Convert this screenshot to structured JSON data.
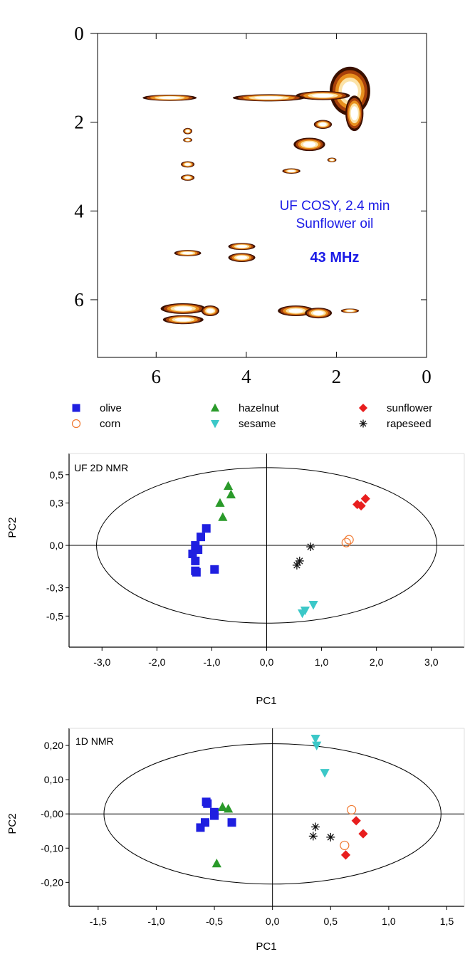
{
  "chart_data": [
    {
      "type": "heatmap",
      "annotations": [
        "UF COSY, 2.4 min",
        "Sunflower oil",
        "43 MHz"
      ],
      "x_ticks": [
        "6",
        "4",
        "2",
        "0"
      ],
      "y_ticks": [
        "0",
        "2",
        "4",
        "6"
      ],
      "xlim": [
        7.3,
        0
      ],
      "ylim": [
        0,
        7.3
      ],
      "annotation_color": "#1a1ae6",
      "peaks": [
        {
          "x": 1.7,
          "y": 1.3,
          "dx": 0.45,
          "dy": 0.55
        },
        {
          "x": 1.6,
          "y": 1.8,
          "dx": 0.2,
          "dy": 0.4
        },
        {
          "x": 2.3,
          "y": 1.4,
          "dx": 0.6,
          "dy": 0.1
        },
        {
          "x": 3.5,
          "y": 1.45,
          "dx": 0.8,
          "dy": 0.08
        },
        {
          "x": 5.7,
          "y": 1.45,
          "dx": 0.6,
          "dy": 0.07
        },
        {
          "x": 2.6,
          "y": 2.5,
          "dx": 0.35,
          "dy": 0.15
        },
        {
          "x": 2.3,
          "y": 2.05,
          "dx": 0.2,
          "dy": 0.1
        },
        {
          "x": 5.3,
          "y": 2.2,
          "dx": 0.1,
          "dy": 0.07
        },
        {
          "x": 5.3,
          "y": 2.4,
          "dx": 0.1,
          "dy": 0.05
        },
        {
          "x": 5.3,
          "y": 2.95,
          "dx": 0.15,
          "dy": 0.07
        },
        {
          "x": 5.3,
          "y": 3.25,
          "dx": 0.15,
          "dy": 0.07
        },
        {
          "x": 3.0,
          "y": 3.1,
          "dx": 0.2,
          "dy": 0.06
        },
        {
          "x": 2.1,
          "y": 2.85,
          "dx": 0.1,
          "dy": 0.05
        },
        {
          "x": 5.3,
          "y": 4.95,
          "dx": 0.3,
          "dy": 0.07
        },
        {
          "x": 4.1,
          "y": 4.8,
          "dx": 0.3,
          "dy": 0.08
        },
        {
          "x": 4.1,
          "y": 5.05,
          "dx": 0.3,
          "dy": 0.1
        },
        {
          "x": 5.4,
          "y": 6.2,
          "dx": 0.5,
          "dy": 0.12
        },
        {
          "x": 5.4,
          "y": 6.45,
          "dx": 0.45,
          "dy": 0.1
        },
        {
          "x": 4.8,
          "y": 6.25,
          "dx": 0.2,
          "dy": 0.12
        },
        {
          "x": 2.9,
          "y": 6.25,
          "dx": 0.4,
          "dy": 0.12
        },
        {
          "x": 2.4,
          "y": 6.3,
          "dx": 0.3,
          "dy": 0.12
        },
        {
          "x": 1.7,
          "y": 6.25,
          "dx": 0.2,
          "dy": 0.05
        }
      ]
    },
    {
      "type": "scatter",
      "title": "UF 2D NMR",
      "xlabel": "PC1",
      "ylabel": "PC2",
      "xlim": [
        -3.6,
        3.6
      ],
      "ylim": [
        -0.72,
        0.65
      ],
      "x_ticks": [
        -3.0,
        -2.0,
        -1.0,
        0.0,
        1.0,
        2.0,
        3.0
      ],
      "x_tick_labels": [
        "-3,0",
        "-2,0",
        "-1,0",
        "0,0",
        "1,0",
        "2,0",
        "3,0"
      ],
      "y_ticks": [
        0.5,
        0.3,
        0.0,
        -0.3,
        -0.5
      ],
      "y_tick_labels": [
        "0,5",
        "0,3",
        "0,0",
        "-0,3",
        "-0,5"
      ],
      "ellipse": {
        "rx": 3.1,
        "ry": 0.55
      },
      "series": [
        {
          "name": "olive",
          "marker": "square",
          "color": "#1f1fe0",
          "points": [
            [
              -1.1,
              0.12
            ],
            [
              -1.2,
              0.06
            ],
            [
              -1.3,
              0.0
            ],
            [
              -1.25,
              -0.03
            ],
            [
              -1.35,
              -0.06
            ],
            [
              -1.3,
              -0.11
            ],
            [
              -1.3,
              -0.18
            ],
            [
              -1.28,
              -0.19
            ],
            [
              -0.95,
              -0.17
            ]
          ]
        },
        {
          "name": "corn",
          "marker": "circle-open",
          "color": "#f07830",
          "points": [
            [
              1.5,
              0.04
            ],
            [
              1.45,
              0.02
            ]
          ]
        },
        {
          "name": "hazelnut",
          "marker": "triangle-up",
          "color": "#2a9a2a",
          "points": [
            [
              -0.7,
              0.42
            ],
            [
              -0.65,
              0.36
            ],
            [
              -0.85,
              0.3
            ],
            [
              -0.8,
              0.2
            ]
          ]
        },
        {
          "name": "sesame",
          "marker": "triangle-down",
          "color": "#3cc8c8",
          "points": [
            [
              0.85,
              -0.42
            ],
            [
              0.7,
              -0.46
            ],
            [
              0.65,
              -0.48
            ]
          ]
        },
        {
          "name": "sunflower",
          "marker": "diamond",
          "color": "#e81e1e",
          "points": [
            [
              1.8,
              0.33
            ],
            [
              1.65,
              0.29
            ],
            [
              1.72,
              0.28
            ]
          ]
        },
        {
          "name": "rapeseed",
          "marker": "asterisk",
          "color": "#111111",
          "points": [
            [
              0.8,
              -0.01
            ],
            [
              0.6,
              -0.11
            ],
            [
              0.55,
              -0.14
            ]
          ]
        }
      ]
    },
    {
      "type": "scatter",
      "title": "1D NMR",
      "xlabel": "PC1",
      "ylabel": "PC2",
      "xlim": [
        -1.75,
        1.65
      ],
      "ylim": [
        -0.27,
        0.25
      ],
      "x_ticks": [
        -1.5,
        -1.0,
        -0.5,
        0.0,
        0.5,
        1.0,
        1.5
      ],
      "x_tick_labels": [
        "-1,5",
        "-1,0",
        "-0,5",
        "0,0",
        "0,5",
        "1,0",
        "1,5"
      ],
      "y_ticks": [
        0.2,
        0.1,
        0.0,
        -0.1,
        -0.2
      ],
      "y_tick_labels": [
        "0,20",
        "0,10",
        "-0,00",
        "-0,10",
        "-0,20"
      ],
      "ellipse": {
        "rx": 1.45,
        "ry": 0.205
      },
      "series": [
        {
          "name": "olive",
          "marker": "square",
          "color": "#1f1fe0",
          "points": [
            [
              -0.57,
              0.035
            ],
            [
              -0.56,
              0.03
            ],
            [
              -0.5,
              0.005
            ],
            [
              -0.5,
              -0.005
            ],
            [
              -0.58,
              -0.025
            ],
            [
              -0.62,
              -0.04
            ],
            [
              -0.35,
              -0.025
            ]
          ]
        },
        {
          "name": "corn",
          "marker": "circle-open",
          "color": "#f07830",
          "points": [
            [
              0.68,
              0.012
            ],
            [
              0.62,
              -0.092
            ]
          ]
        },
        {
          "name": "hazelnut",
          "marker": "triangle-up",
          "color": "#2a9a2a",
          "points": [
            [
              -0.43,
              0.02
            ],
            [
              -0.38,
              0.015
            ],
            [
              -0.48,
              -0.145
            ]
          ]
        },
        {
          "name": "sesame",
          "marker": "triangle-down",
          "color": "#3cc8c8",
          "points": [
            [
              0.37,
              0.22
            ],
            [
              0.38,
              0.2
            ],
            [
              0.45,
              0.12
            ]
          ]
        },
        {
          "name": "sunflower",
          "marker": "diamond",
          "color": "#e81e1e",
          "points": [
            [
              0.72,
              -0.02
            ],
            [
              0.78,
              -0.058
            ],
            [
              0.63,
              -0.12
            ]
          ]
        },
        {
          "name": "rapeseed",
          "marker": "asterisk",
          "color": "#111111",
          "points": [
            [
              0.37,
              -0.038
            ],
            [
              0.35,
              -0.065
            ],
            [
              0.5,
              -0.068
            ]
          ]
        }
      ]
    }
  ],
  "legend": [
    {
      "name": "olive",
      "marker": "square",
      "color": "#1f1fe0"
    },
    {
      "name": "hazelnut",
      "marker": "triangle-up",
      "color": "#2a9a2a"
    },
    {
      "name": "sunflower",
      "marker": "diamond",
      "color": "#e81e1e"
    },
    {
      "name": "corn",
      "marker": "circle-open",
      "color": "#f07830"
    },
    {
      "name": "sesame",
      "marker": "triangle-down",
      "color": "#3cc8c8"
    },
    {
      "name": "rapeseed",
      "marker": "asterisk",
      "color": "#111111"
    }
  ]
}
